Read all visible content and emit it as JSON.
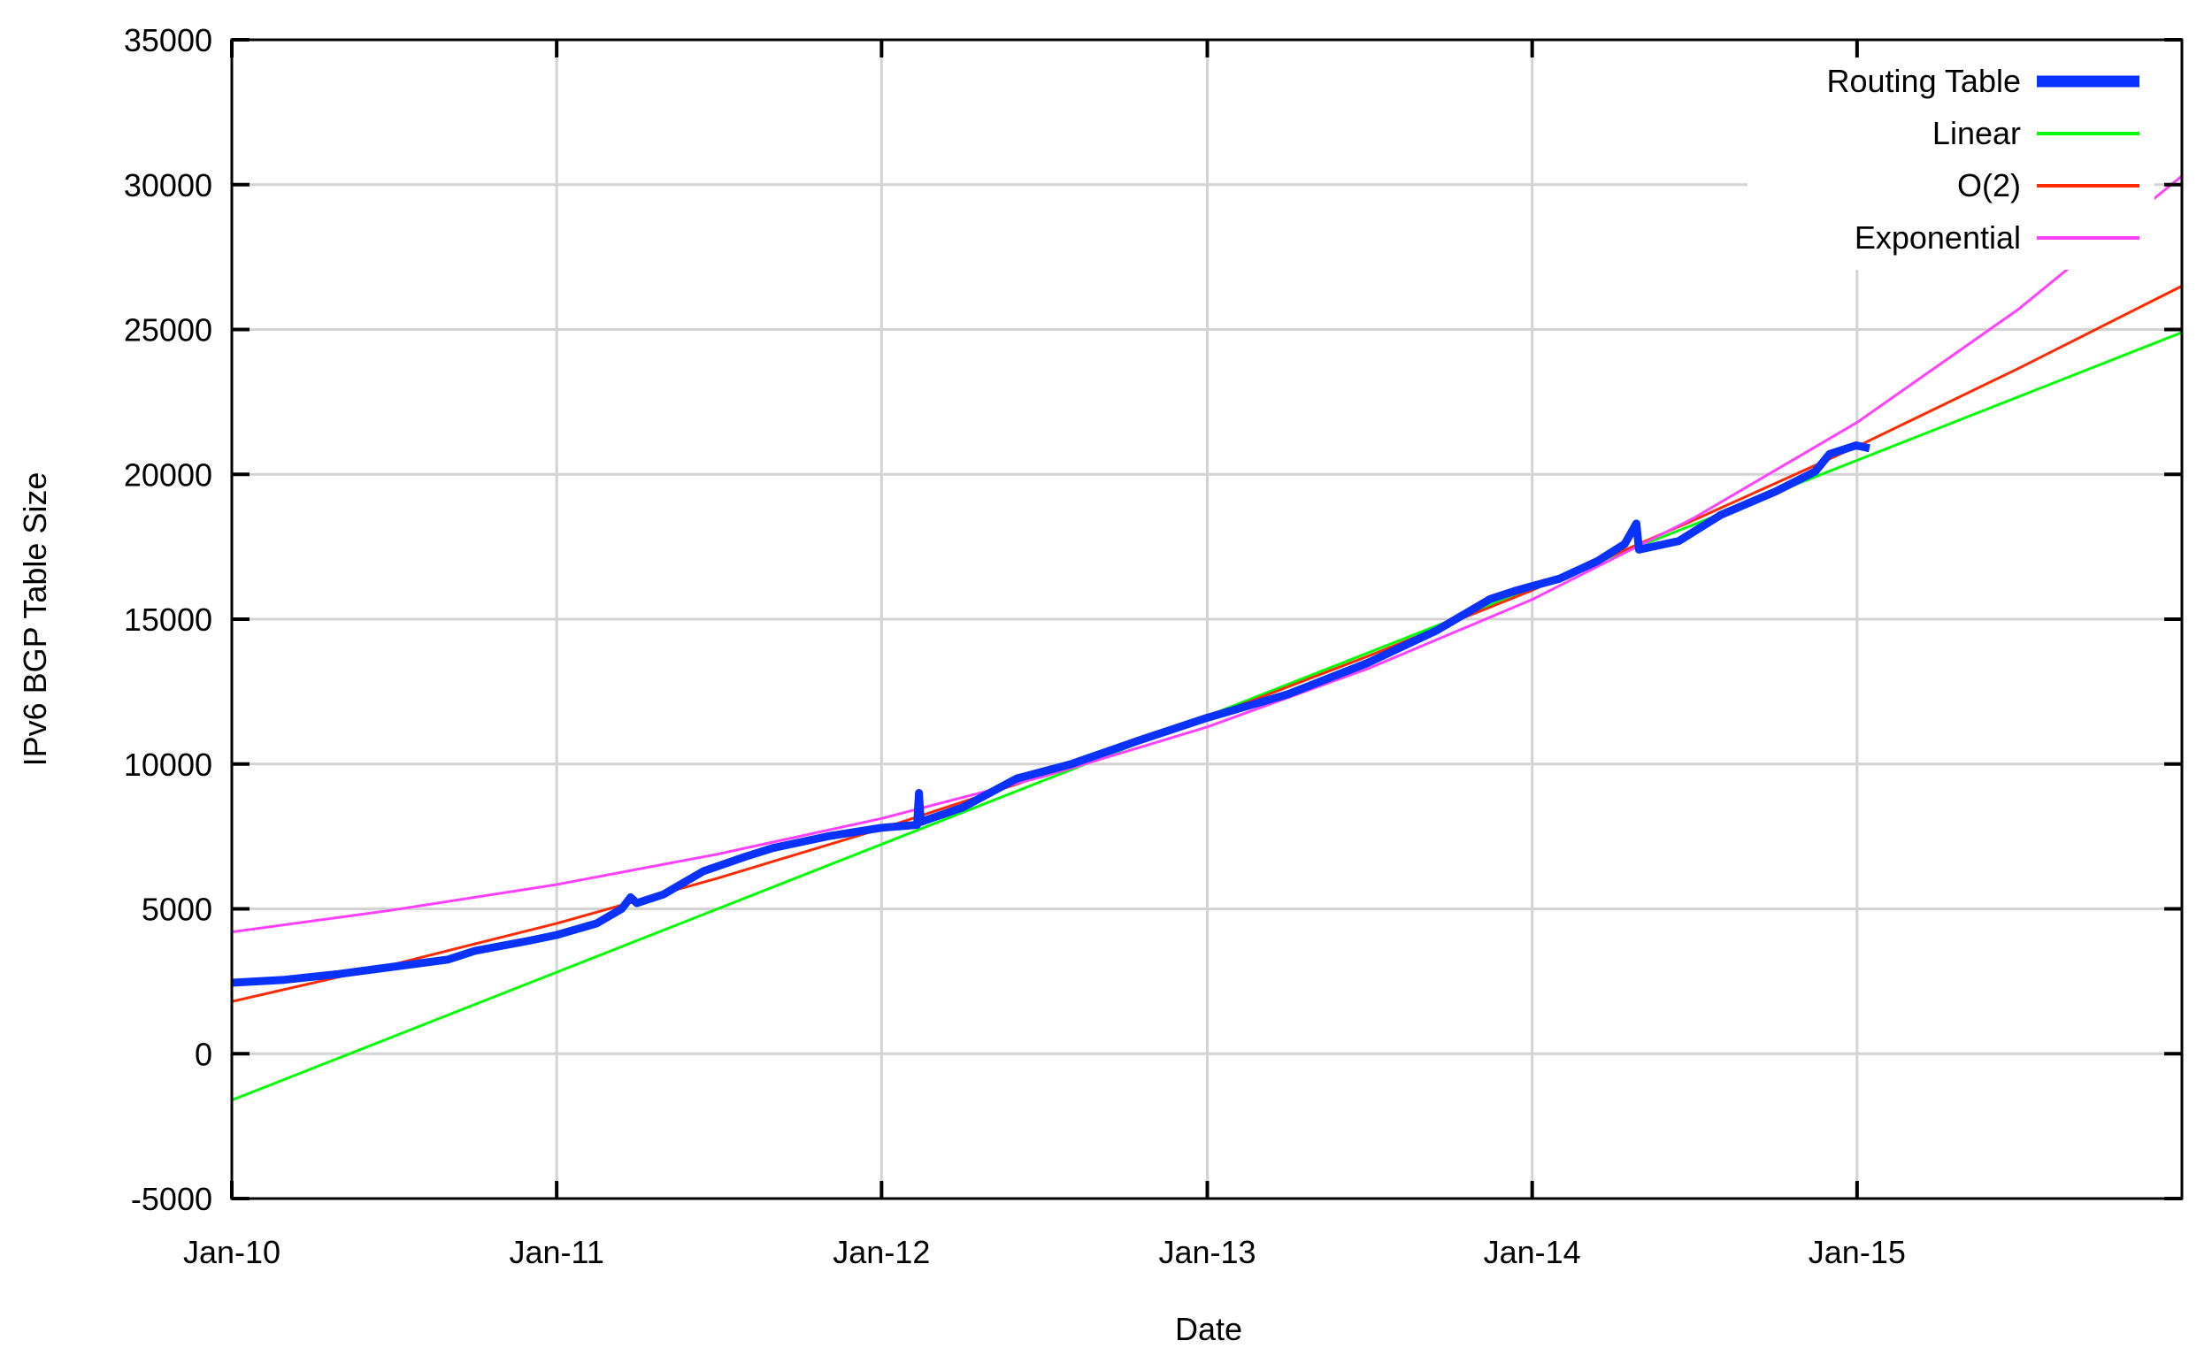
{
  "chart_data": {
    "type": "line",
    "title": "",
    "xlabel": "Date",
    "ylabel": "IPv6 BGP Table Size",
    "xlim": [
      "2010-01-01",
      "2016-01-01"
    ],
    "ylim": [
      -5000,
      35000
    ],
    "grid": true,
    "legend_position": "top-right",
    "x_ticks": [
      {
        "date": "2010-01-01",
        "label": "Jan-10"
      },
      {
        "date": "2011-01-01",
        "label": "Jan-11"
      },
      {
        "date": "2012-01-01",
        "label": "Jan-12"
      },
      {
        "date": "2013-01-01",
        "label": "Jan-13"
      },
      {
        "date": "2014-01-01",
        "label": "Jan-14"
      },
      {
        "date": "2015-01-01",
        "label": "Jan-15"
      }
    ],
    "y_ticks": [
      "-5000",
      "0",
      "5000",
      "10000",
      "15000",
      "20000",
      "25000",
      "30000",
      "35000"
    ],
    "series": [
      {
        "name": "Routing Table",
        "color": "#0a32ff",
        "width": 9,
        "points": [
          [
            "2010-01-01",
            2450
          ],
          [
            "2010-03-01",
            2550
          ],
          [
            "2010-05-01",
            2750
          ],
          [
            "2010-07-01",
            3000
          ],
          [
            "2010-09-01",
            3250
          ],
          [
            "2010-10-01",
            3550
          ],
          [
            "2010-12-01",
            3900
          ],
          [
            "2011-01-01",
            4100
          ],
          [
            "2011-02-15",
            4500
          ],
          [
            "2011-03-15",
            5000
          ],
          [
            "2011-03-25",
            5400
          ],
          [
            "2011-04-01",
            5200
          ],
          [
            "2011-05-01",
            5500
          ],
          [
            "2011-06-15",
            6300
          ],
          [
            "2011-08-01",
            6800
          ],
          [
            "2011-09-01",
            7100
          ],
          [
            "2011-11-01",
            7500
          ],
          [
            "2012-01-01",
            7800
          ],
          [
            "2012-02-10",
            7900
          ],
          [
            "2012-02-12",
            9000
          ],
          [
            "2012-02-14",
            8000
          ],
          [
            "2012-04-01",
            8500
          ],
          [
            "2012-06-01",
            9500
          ],
          [
            "2012-08-01",
            10000
          ],
          [
            "2012-10-15",
            10800
          ],
          [
            "2013-01-01",
            11600
          ],
          [
            "2013-04-01",
            12400
          ],
          [
            "2013-07-01",
            13500
          ],
          [
            "2013-09-15",
            14600
          ],
          [
            "2013-11-15",
            15700
          ],
          [
            "2013-12-15",
            16000
          ],
          [
            "2014-02-01",
            16400
          ],
          [
            "2014-03-15",
            17000
          ],
          [
            "2014-04-15",
            17600
          ],
          [
            "2014-04-28",
            18300
          ],
          [
            "2014-05-01",
            17400
          ],
          [
            "2014-06-15",
            17700
          ],
          [
            "2014-08-01",
            18600
          ],
          [
            "2014-10-01",
            19400
          ],
          [
            "2014-11-15",
            20100
          ],
          [
            "2014-12-01",
            20700
          ],
          [
            "2014-12-31",
            21000
          ],
          [
            "2015-01-15",
            20900
          ]
        ]
      },
      {
        "name": "Linear",
        "color": "#00ff00",
        "width": 3,
        "points": [
          [
            "2010-01-01",
            -1600
          ],
          [
            "2016-01-01",
            24900
          ]
        ]
      },
      {
        "name": "O(2)",
        "color": "#ff2a00",
        "width": 3,
        "points": [
          [
            "2010-01-01",
            1800
          ],
          [
            "2010-07-01",
            3080
          ],
          [
            "2011-01-01",
            4500
          ],
          [
            "2011-07-01",
            6060
          ],
          [
            "2012-01-01",
            7770
          ],
          [
            "2012-07-01",
            9610
          ],
          [
            "2013-01-01",
            11600
          ],
          [
            "2013-07-01",
            13730
          ],
          [
            "2014-01-01",
            16000
          ],
          [
            "2014-07-01",
            18410
          ],
          [
            "2015-01-01",
            20960
          ],
          [
            "2015-07-01",
            23650
          ],
          [
            "2016-01-01",
            26500
          ]
        ]
      },
      {
        "name": "Exponential",
        "color": "#ff40ff",
        "width": 3,
        "points": [
          [
            "2010-01-01",
            4200
          ],
          [
            "2010-07-01",
            4960
          ],
          [
            "2011-01-01",
            5840
          ],
          [
            "2011-07-01",
            6890
          ],
          [
            "2012-01-01",
            8120
          ],
          [
            "2012-07-01",
            9570
          ],
          [
            "2013-01-01",
            11280
          ],
          [
            "2013-07-01",
            13300
          ],
          [
            "2014-01-01",
            15680
          ],
          [
            "2014-07-01",
            18480
          ],
          [
            "2015-01-01",
            21790
          ],
          [
            "2015-07-01",
            25690
          ],
          [
            "2016-01-01",
            30300
          ]
        ]
      }
    ]
  }
}
